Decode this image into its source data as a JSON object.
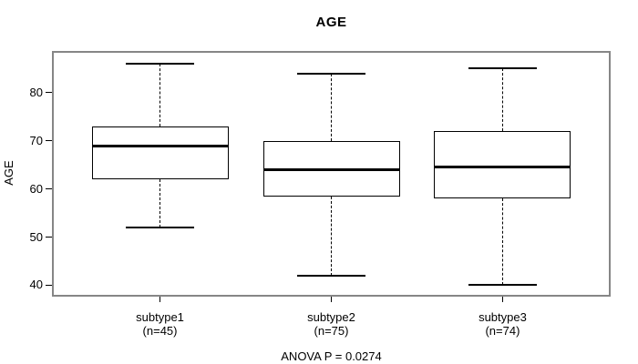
{
  "chart_data": {
    "type": "boxplot",
    "title": "AGE",
    "xlabel": "",
    "ylabel": "AGE",
    "annotation": "ANOVA P = 0.0274",
    "ylim": [
      38,
      88.3
    ],
    "yticks": [
      40,
      50,
      60,
      70,
      80
    ],
    "grid": false,
    "legend": false,
    "categories": [
      "subtype1",
      "subtype2",
      "subtype3"
    ],
    "series": [
      {
        "name": "subtype1",
        "n_label": "(n=45)",
        "n": 45,
        "whisker_low": 52,
        "q1": 62,
        "median": 69,
        "q3": 73,
        "whisker_high": 86
      },
      {
        "name": "subtype2",
        "n_label": "(n=75)",
        "n": 75,
        "whisker_low": 42,
        "q1": 58.5,
        "median": 64,
        "q3": 70,
        "whisker_high": 84
      },
      {
        "name": "subtype3",
        "n_label": "(n=74)",
        "n": 74,
        "whisker_low": 40,
        "q1": 58,
        "median": 64.5,
        "q3": 72,
        "whisker_high": 85
      }
    ],
    "colors": {
      "frame": "#868686",
      "line": "#000000",
      "background": "#ffffff"
    }
  }
}
